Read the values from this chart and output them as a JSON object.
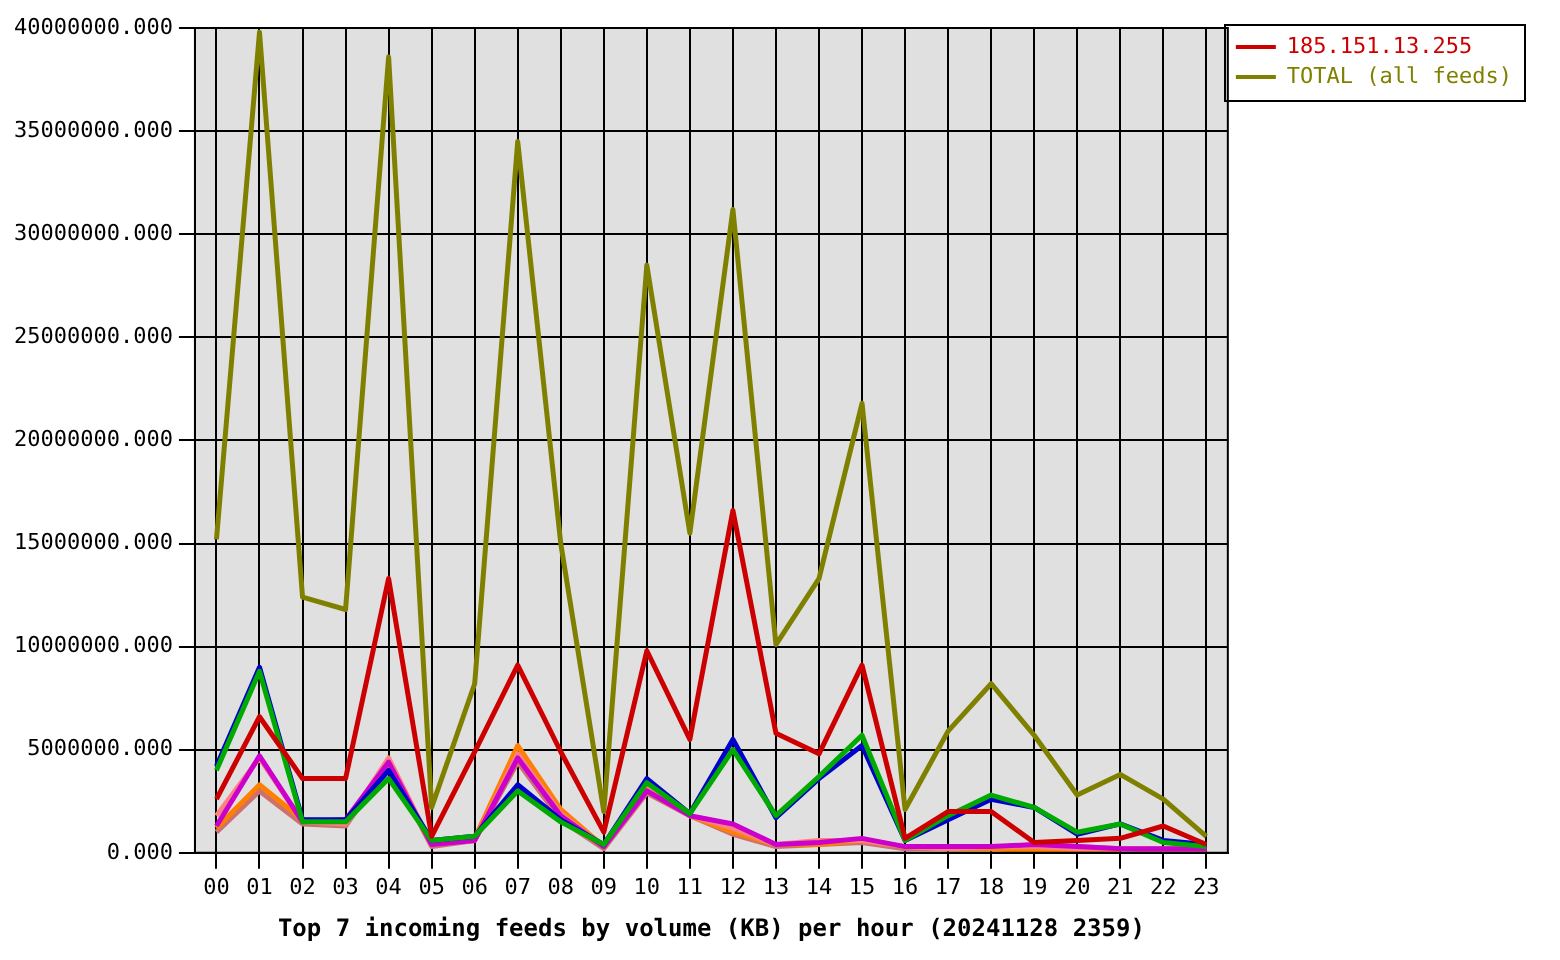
{
  "chart_data": {
    "type": "line",
    "xlabel": "Top 7 incoming feeds by volume (KB) per hour (20241128 2359)",
    "categories": [
      "00",
      "01",
      "02",
      "03",
      "04",
      "05",
      "06",
      "07",
      "08",
      "09",
      "10",
      "11",
      "12",
      "13",
      "14",
      "15",
      "16",
      "17",
      "18",
      "19",
      "20",
      "21",
      "22",
      "23"
    ],
    "ylim": [
      0,
      40000000
    ],
    "yticks": [
      {
        "value": 0,
        "label": "0.000"
      },
      {
        "value": 5000000,
        "label": "5000000.000"
      },
      {
        "value": 10000000,
        "label": "10000000.000"
      },
      {
        "value": 15000000,
        "label": "15000000.000"
      },
      {
        "value": 20000000,
        "label": "20000000.000"
      },
      {
        "value": 25000000,
        "label": "25000000.000"
      },
      {
        "value": 30000000,
        "label": "30000000.000"
      },
      {
        "value": 35000000,
        "label": "35000000.000"
      },
      {
        "value": 40000000,
        "label": "40000000.000"
      }
    ],
    "grid": true,
    "legend": "right",
    "marker": "none",
    "line_style": "solid",
    "series": [
      {
        "name": "185.151.13.255",
        "color": "#cc0000",
        "values": [
          2600000,
          6600000,
          3600000,
          3600000,
          13300000,
          800000,
          4900000,
          9100000,
          4900000,
          1000000,
          9800000,
          5500000,
          16600000,
          5800000,
          4800000,
          9100000,
          700000,
          2000000,
          2000000,
          500000,
          600000,
          700000,
          1300000,
          400000
        ]
      },
      {
        "color": "#00aa00",
        "values": [
          4000000,
          8800000,
          1500000,
          1500000,
          3600000,
          600000,
          800000,
          3000000,
          1500000,
          400000,
          3400000,
          1900000,
          5000000,
          1800000,
          3700000,
          5700000,
          600000,
          1800000,
          2800000,
          2200000,
          1000000,
          1400000,
          500000,
          300000
        ]
      },
      {
        "color": "#0000cc",
        "values": [
          4200000,
          9000000,
          1600000,
          1600000,
          4000000,
          600000,
          800000,
          3300000,
          1600000,
          400000,
          3600000,
          1900000,
          5500000,
          1700000,
          3600000,
          5200000,
          600000,
          1600000,
          2600000,
          2200000,
          900000,
          1400000,
          600000,
          400000
        ]
      },
      {
        "color": "#cc00cc",
        "values": [
          1300000,
          4700000,
          1500000,
          1600000,
          4400000,
          400000,
          600000,
          4600000,
          1800000,
          300000,
          3000000,
          1800000,
          1400000,
          400000,
          500000,
          700000,
          300000,
          300000,
          300000,
          400000,
          300000,
          200000,
          200000,
          200000
        ]
      },
      {
        "color": "#ff8080",
        "values": [
          1800000,
          4600000,
          1500000,
          1400000,
          4600000,
          400000,
          600000,
          4800000,
          1900000,
          300000,
          3100000,
          1800000,
          1200000,
          400000,
          600000,
          600000,
          300000,
          200000,
          300000,
          300000,
          200000,
          200000,
          200000,
          200000
        ]
      },
      {
        "color": "#ff8000",
        "values": [
          1200000,
          3300000,
          1600000,
          1500000,
          4400000,
          400000,
          700000,
          5200000,
          2100000,
          300000,
          3300000,
          1800000,
          1000000,
          400000,
          400000,
          600000,
          300000,
          200000,
          200000,
          100000,
          100000,
          100000,
          null,
          null
        ]
      },
      {
        "color": "#cc7070",
        "values": [
          1000000,
          3000000,
          1400000,
          1300000,
          4300000,
          300000,
          600000,
          4400000,
          1600000,
          200000,
          2900000,
          1800000,
          900000,
          300000,
          400000,
          500000,
          200000,
          200000,
          200000,
          300000,
          300000,
          200000,
          100000,
          100000
        ]
      },
      {
        "name": "TOTAL (all feeds)",
        "color": "#808000",
        "values": [
          15200000,
          39800000,
          12400000,
          11800000,
          38600000,
          2200000,
          8200000,
          34500000,
          15000000,
          2000000,
          28500000,
          15500000,
          31200000,
          10100000,
          13300000,
          21800000,
          2100000,
          5900000,
          8200000,
          5700000,
          2800000,
          3800000,
          2600000,
          800000
        ]
      }
    ]
  }
}
